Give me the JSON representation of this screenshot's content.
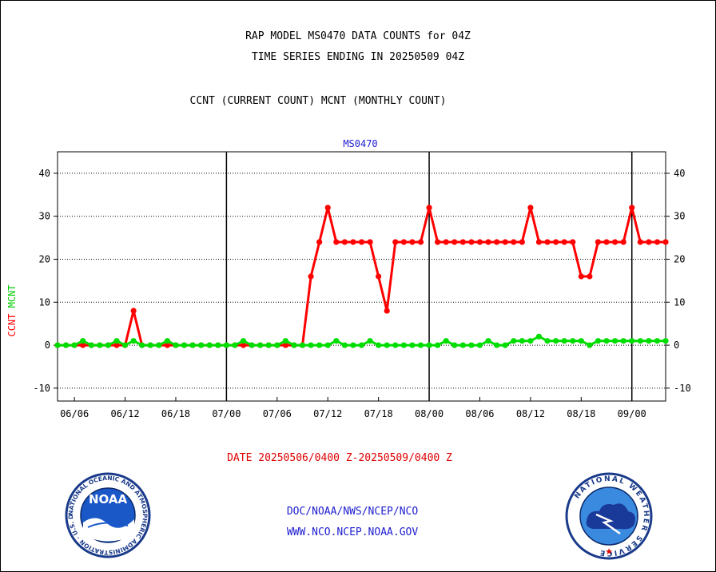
{
  "header": {
    "title_line1": "RAP MODEL MS0470 DATA COUNTS for 04Z",
    "title_line2": "TIME SERIES ENDING IN 20250509 04Z",
    "subtitle": "CCNT (CURRENT COUNT) MCNT (MONTHLY COUNT)"
  },
  "footer": {
    "date_range": "DATE 20250506/0400 Z-20250509/0400 Z",
    "org_line": "DOC/NOAA/NWS/NCEP/NCO",
    "url_line": "WWW.NCO.NCEP.NOAA.GOV"
  },
  "logos": {
    "left": "NOAA",
    "left_ring_text": "NATIONAL OCEANIC AND ATMOSPHERIC ADMINISTRATION · U.S. DEPARTMENT OF COMMERCE",
    "right_ring_text": "NATIONAL WEATHER SERVICE"
  },
  "chart_data": {
    "type": "line",
    "title": "MS0470",
    "ylabel_parts": [
      {
        "text": "CCNT",
        "color": "#ff0000"
      },
      {
        "text": "MCNT",
        "color": "#00cc00"
      }
    ],
    "ylim": [
      -13,
      45
    ],
    "yticks": [
      -10,
      0,
      10,
      20,
      30,
      40
    ],
    "x_range": [
      0,
      72
    ],
    "x_tick_labels": [
      "06/06",
      "06/12",
      "06/18",
      "07/00",
      "07/06",
      "07/12",
      "07/18",
      "08/00",
      "08/06",
      "08/12",
      "08/18",
      "09/00"
    ],
    "x_tick_values": [
      2,
      8,
      14,
      20,
      26,
      32,
      38,
      44,
      50,
      56,
      62,
      68
    ],
    "day_boundaries": [
      20,
      44,
      68
    ],
    "grid": true,
    "series": [
      {
        "name": "CCNT",
        "color": "#ff0000",
        "x": [
          0,
          1,
          2,
          3,
          4,
          5,
          6,
          7,
          8,
          9,
          10,
          11,
          12,
          13,
          14,
          15,
          16,
          17,
          18,
          19,
          20,
          21,
          22,
          23,
          24,
          25,
          26,
          27,
          28,
          29,
          30,
          31,
          32,
          33,
          34,
          35,
          36,
          37,
          38,
          39,
          40,
          41,
          42,
          43,
          44,
          45,
          46,
          47,
          48,
          49,
          50,
          51,
          52,
          53,
          54,
          55,
          56,
          57,
          58,
          59,
          60,
          61,
          62,
          63,
          64,
          65,
          66,
          67,
          68,
          69,
          70,
          71,
          72
        ],
        "values": [
          0,
          0,
          0,
          0,
          0,
          0,
          0,
          0,
          0,
          8,
          0,
          0,
          0,
          0,
          0,
          0,
          0,
          0,
          0,
          0,
          0,
          0,
          0,
          0,
          0,
          0,
          0,
          0,
          0,
          0,
          16,
          24,
          32,
          24,
          24,
          24,
          24,
          24,
          16,
          8,
          24,
          24,
          24,
          24,
          32,
          24,
          24,
          24,
          24,
          24,
          24,
          24,
          24,
          24,
          24,
          24,
          32,
          24,
          24,
          24,
          24,
          24,
          16,
          16,
          24,
          24,
          24,
          24,
          32,
          24,
          24,
          24,
          24
        ]
      },
      {
        "name": "MCNT",
        "color": "#00dd00",
        "x": [
          0,
          1,
          2,
          3,
          4,
          5,
          6,
          7,
          8,
          9,
          10,
          11,
          12,
          13,
          14,
          15,
          16,
          17,
          18,
          19,
          20,
          21,
          22,
          23,
          24,
          25,
          26,
          27,
          28,
          29,
          30,
          31,
          32,
          33,
          34,
          35,
          36,
          37,
          38,
          39,
          40,
          41,
          42,
          43,
          44,
          45,
          46,
          47,
          48,
          49,
          50,
          51,
          52,
          53,
          54,
          55,
          56,
          57,
          58,
          59,
          60,
          61,
          62,
          63,
          64,
          65,
          66,
          67,
          68,
          69,
          70,
          71,
          72
        ],
        "values": [
          0,
          0,
          0,
          1,
          0,
          0,
          0,
          1,
          0,
          1,
          0,
          0,
          0,
          1,
          0,
          0,
          0,
          0,
          0,
          0,
          0,
          0,
          1,
          0,
          0,
          0,
          0,
          1,
          0,
          0,
          0,
          0,
          0,
          1,
          0,
          0,
          0,
          1,
          0,
          0,
          0,
          0,
          0,
          0,
          0,
          0,
          1,
          0,
          0,
          0,
          0,
          1,
          0,
          0,
          1,
          1,
          1,
          2,
          1,
          1,
          1,
          1,
          1,
          0,
          1,
          1,
          1,
          1,
          1,
          1,
          1,
          1,
          1
        ]
      }
    ]
  }
}
